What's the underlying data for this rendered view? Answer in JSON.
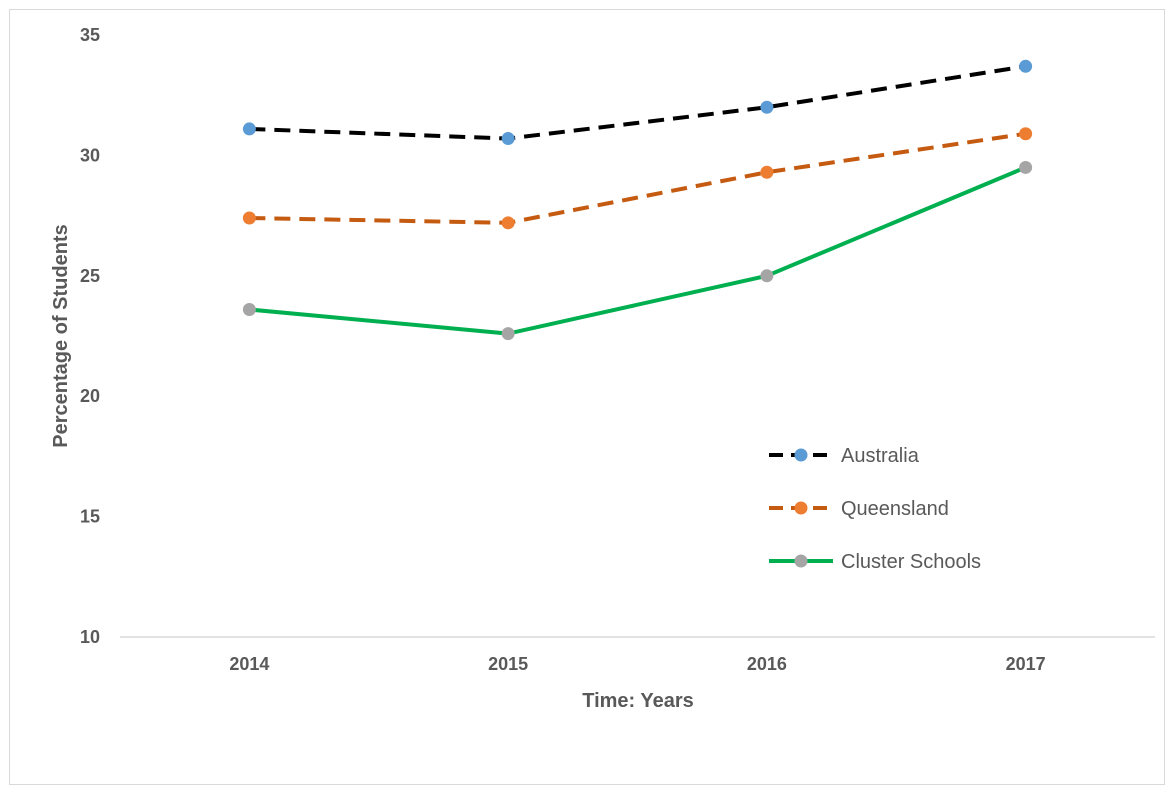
{
  "chart_data": {
    "type": "line",
    "title": "",
    "xlabel": "Time: Years",
    "ylabel": "Percentage of Students",
    "categories": [
      "2014",
      "2015",
      "2016",
      "2017"
    ],
    "ylim": [
      10,
      35
    ],
    "yticks": [
      10,
      15,
      20,
      25,
      30,
      35
    ],
    "grid": false,
    "legend_position": "right",
    "series": [
      {
        "name": "Australia",
        "values": [
          31.1,
          30.7,
          32.0,
          33.7
        ],
        "line_color": "#000000",
        "marker_color": "#5b9bd5",
        "line_style": "dashed"
      },
      {
        "name": "Queensland",
        "values": [
          27.4,
          27.2,
          29.3,
          30.9
        ],
        "line_color": "#c55a11",
        "marker_color": "#ed7d31",
        "line_style": "dashed"
      },
      {
        "name": "Cluster Schools",
        "values": [
          23.6,
          22.6,
          25.0,
          29.5
        ],
        "line_color": "#00b050",
        "marker_color": "#a5a5a5",
        "line_style": "solid"
      }
    ]
  }
}
